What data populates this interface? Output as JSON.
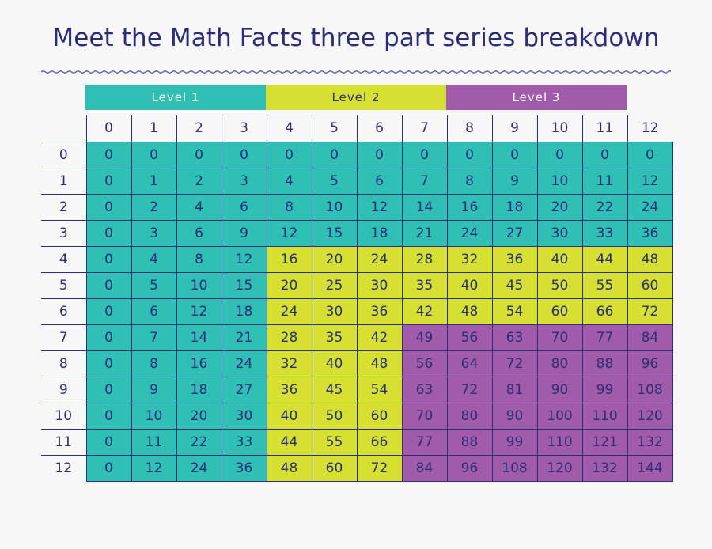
{
  "title": "Meet the Math Facts three part series breakdown",
  "levels": [
    {
      "label": "Level 1",
      "color": "#2fbfb5",
      "columns": [
        0,
        3
      ]
    },
    {
      "label": "Level 2",
      "color": "#d6e031",
      "columns": [
        4,
        7
      ]
    },
    {
      "label": "Level 3",
      "color": "#a15ca9",
      "columns": [
        8,
        11
      ]
    }
  ],
  "colors": {
    "level1": "#2fbfb5",
    "level2": "#d6e031",
    "level3": "#a15ca9",
    "text": "#2b2d77",
    "wave": "#5c5fa8"
  },
  "table": {
    "column_headers": [
      "0",
      "1",
      "2",
      "3",
      "4",
      "5",
      "6",
      "7",
      "8",
      "9",
      "10",
      "11",
      "12"
    ],
    "row_headers": [
      "0",
      "1",
      "2",
      "3",
      "4",
      "5",
      "6",
      "7",
      "8",
      "9",
      "10",
      "11",
      "12"
    ],
    "rows": [
      [
        "0",
        "0",
        "0",
        "0",
        "0",
        "0",
        "0",
        "0",
        "0",
        "0",
        "0",
        "0",
        "0"
      ],
      [
        "0",
        "1",
        "2",
        "3",
        "4",
        "5",
        "6",
        "7",
        "8",
        "9",
        "10",
        "11",
        "12"
      ],
      [
        "0",
        "2",
        "4",
        "6",
        "8",
        "10",
        "12",
        "14",
        "16",
        "18",
        "20",
        "22",
        "24"
      ],
      [
        "0",
        "3",
        "6",
        "9",
        "12",
        "15",
        "18",
        "21",
        "24",
        "27",
        "30",
        "33",
        "36"
      ],
      [
        "0",
        "4",
        "8",
        "12",
        "16",
        "20",
        "24",
        "28",
        "32",
        "36",
        "40",
        "44",
        "48"
      ],
      [
        "0",
        "5",
        "10",
        "15",
        "20",
        "25",
        "30",
        "35",
        "40",
        "45",
        "50",
        "55",
        "60"
      ],
      [
        "0",
        "6",
        "12",
        "18",
        "24",
        "30",
        "36",
        "42",
        "48",
        "54",
        "60",
        "66",
        "72"
      ],
      [
        "0",
        "7",
        "14",
        "21",
        "28",
        "35",
        "42",
        "49",
        "56",
        "63",
        "70",
        "77",
        "84"
      ],
      [
        "0",
        "8",
        "16",
        "24",
        "32",
        "40",
        "48",
        "56",
        "64",
        "72",
        "80",
        "88",
        "96"
      ],
      [
        "0",
        "9",
        "18",
        "27",
        "36",
        "45",
        "54",
        "63",
        "72",
        "81",
        "90",
        "99",
        "108"
      ],
      [
        "0",
        "10",
        "20",
        "30",
        "40",
        "50",
        "60",
        "70",
        "80",
        "90",
        "100",
        "110",
        "120"
      ],
      [
        "0",
        "11",
        "22",
        "33",
        "44",
        "55",
        "66",
        "77",
        "88",
        "99",
        "110",
        "121",
        "132"
      ],
      [
        "0",
        "12",
        "24",
        "36",
        "48",
        "60",
        "72",
        "84",
        "96",
        "108",
        "120",
        "132",
        "144"
      ]
    ]
  }
}
